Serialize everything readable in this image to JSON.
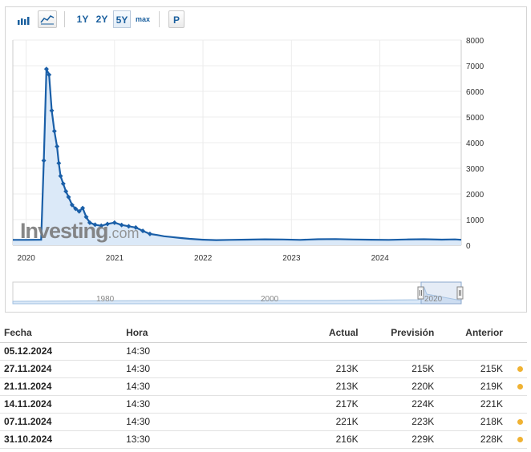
{
  "toolbar": {
    "period_buttons": [
      "1Y",
      "2Y",
      "5Y",
      "max"
    ],
    "selected_period": "5Y",
    "p_button": "P",
    "chart_types": [
      "bar-chart-icon",
      "area-chart-icon"
    ]
  },
  "watermark": {
    "brand": "Investing",
    "suffix": ".com"
  },
  "colors": {
    "line": "#1a5fa8",
    "area": "#dbe9f8",
    "positive": "#0a9a0a",
    "negative": "#e00000",
    "dot": "#f0b232"
  },
  "chart_data": {
    "type": "area",
    "x_ticks": [
      "2020",
      "2021",
      "2022",
      "2023",
      "2024"
    ],
    "y_ticks": [
      "0",
      "1000",
      "2000",
      "3000",
      "4000",
      "5000",
      "6000",
      "7000",
      "8000"
    ],
    "ylim": [
      0,
      8000
    ],
    "xlim": [
      2019.85,
      2024.92
    ],
    "points": [
      [
        2019.85,
        210
      ],
      [
        2020.0,
        210
      ],
      [
        2020.17,
        215
      ],
      [
        2020.2,
        3300
      ],
      [
        2020.23,
        6870
      ],
      [
        2020.26,
        6650
      ],
      [
        2020.29,
        5250
      ],
      [
        2020.32,
        4450
      ],
      [
        2020.35,
        3850
      ],
      [
        2020.37,
        3200
      ],
      [
        2020.39,
        2700
      ],
      [
        2020.42,
        2400
      ],
      [
        2020.45,
        2100
      ],
      [
        2020.48,
        1880
      ],
      [
        2020.52,
        1570
      ],
      [
        2020.56,
        1420
      ],
      [
        2020.6,
        1320
      ],
      [
        2020.64,
        1450
      ],
      [
        2020.68,
        1100
      ],
      [
        2020.72,
        880
      ],
      [
        2020.78,
        800
      ],
      [
        2020.85,
        760
      ],
      [
        2020.92,
        830
      ],
      [
        2021.0,
        880
      ],
      [
        2021.08,
        790
      ],
      [
        2021.16,
        740
      ],
      [
        2021.24,
        690
      ],
      [
        2021.32,
        560
      ],
      [
        2021.4,
        440
      ],
      [
        2021.48,
        400
      ],
      [
        2021.56,
        350
      ],
      [
        2021.65,
        320
      ],
      [
        2021.75,
        280
      ],
      [
        2021.85,
        250
      ],
      [
        2022.0,
        215
      ],
      [
        2022.15,
        200
      ],
      [
        2022.3,
        210
      ],
      [
        2022.5,
        220
      ],
      [
        2022.7,
        230
      ],
      [
        2022.9,
        225
      ],
      [
        2023.1,
        210
      ],
      [
        2023.3,
        235
      ],
      [
        2023.5,
        240
      ],
      [
        2023.7,
        225
      ],
      [
        2023.9,
        215
      ],
      [
        2024.1,
        210
      ],
      [
        2024.3,
        225
      ],
      [
        2024.5,
        235
      ],
      [
        2024.7,
        220
      ],
      [
        2024.85,
        228
      ],
      [
        2024.92,
        213
      ]
    ]
  },
  "navigator": {
    "labels": [
      "1980",
      "2000",
      "2020"
    ]
  },
  "table": {
    "headers": {
      "fecha": "Fecha",
      "hora": "Hora",
      "actual": "Actual",
      "prevision": "Previsión",
      "anterior": "Anterior"
    },
    "rows": [
      {
        "fecha": "05.12.2024",
        "hora": "14:30",
        "actual": "",
        "prevision": "",
        "anterior": "",
        "actual_color": "",
        "anterior_color": "",
        "dot": false
      },
      {
        "fecha": "27.11.2024",
        "hora": "14:30",
        "actual": "213K",
        "prevision": "215K",
        "anterior": "215K",
        "actual_color": "green",
        "anterior_color": "red",
        "dot": true
      },
      {
        "fecha": "21.11.2024",
        "hora": "14:30",
        "actual": "213K",
        "prevision": "220K",
        "anterior": "219K",
        "actual_color": "green",
        "anterior_color": "red",
        "dot": true
      },
      {
        "fecha": "14.11.2024",
        "hora": "14:30",
        "actual": "217K",
        "prevision": "224K",
        "anterior": "221K",
        "actual_color": "green",
        "anterior_color": "",
        "dot": false
      },
      {
        "fecha": "07.11.2024",
        "hora": "14:30",
        "actual": "221K",
        "prevision": "223K",
        "anterior": "218K",
        "actual_color": "green",
        "anterior_color": "red",
        "dot": true
      },
      {
        "fecha": "31.10.2024",
        "hora": "13:30",
        "actual": "216K",
        "prevision": "229K",
        "anterior": "228K",
        "actual_color": "green",
        "anterior_color": "red",
        "dot": true
      }
    ]
  }
}
